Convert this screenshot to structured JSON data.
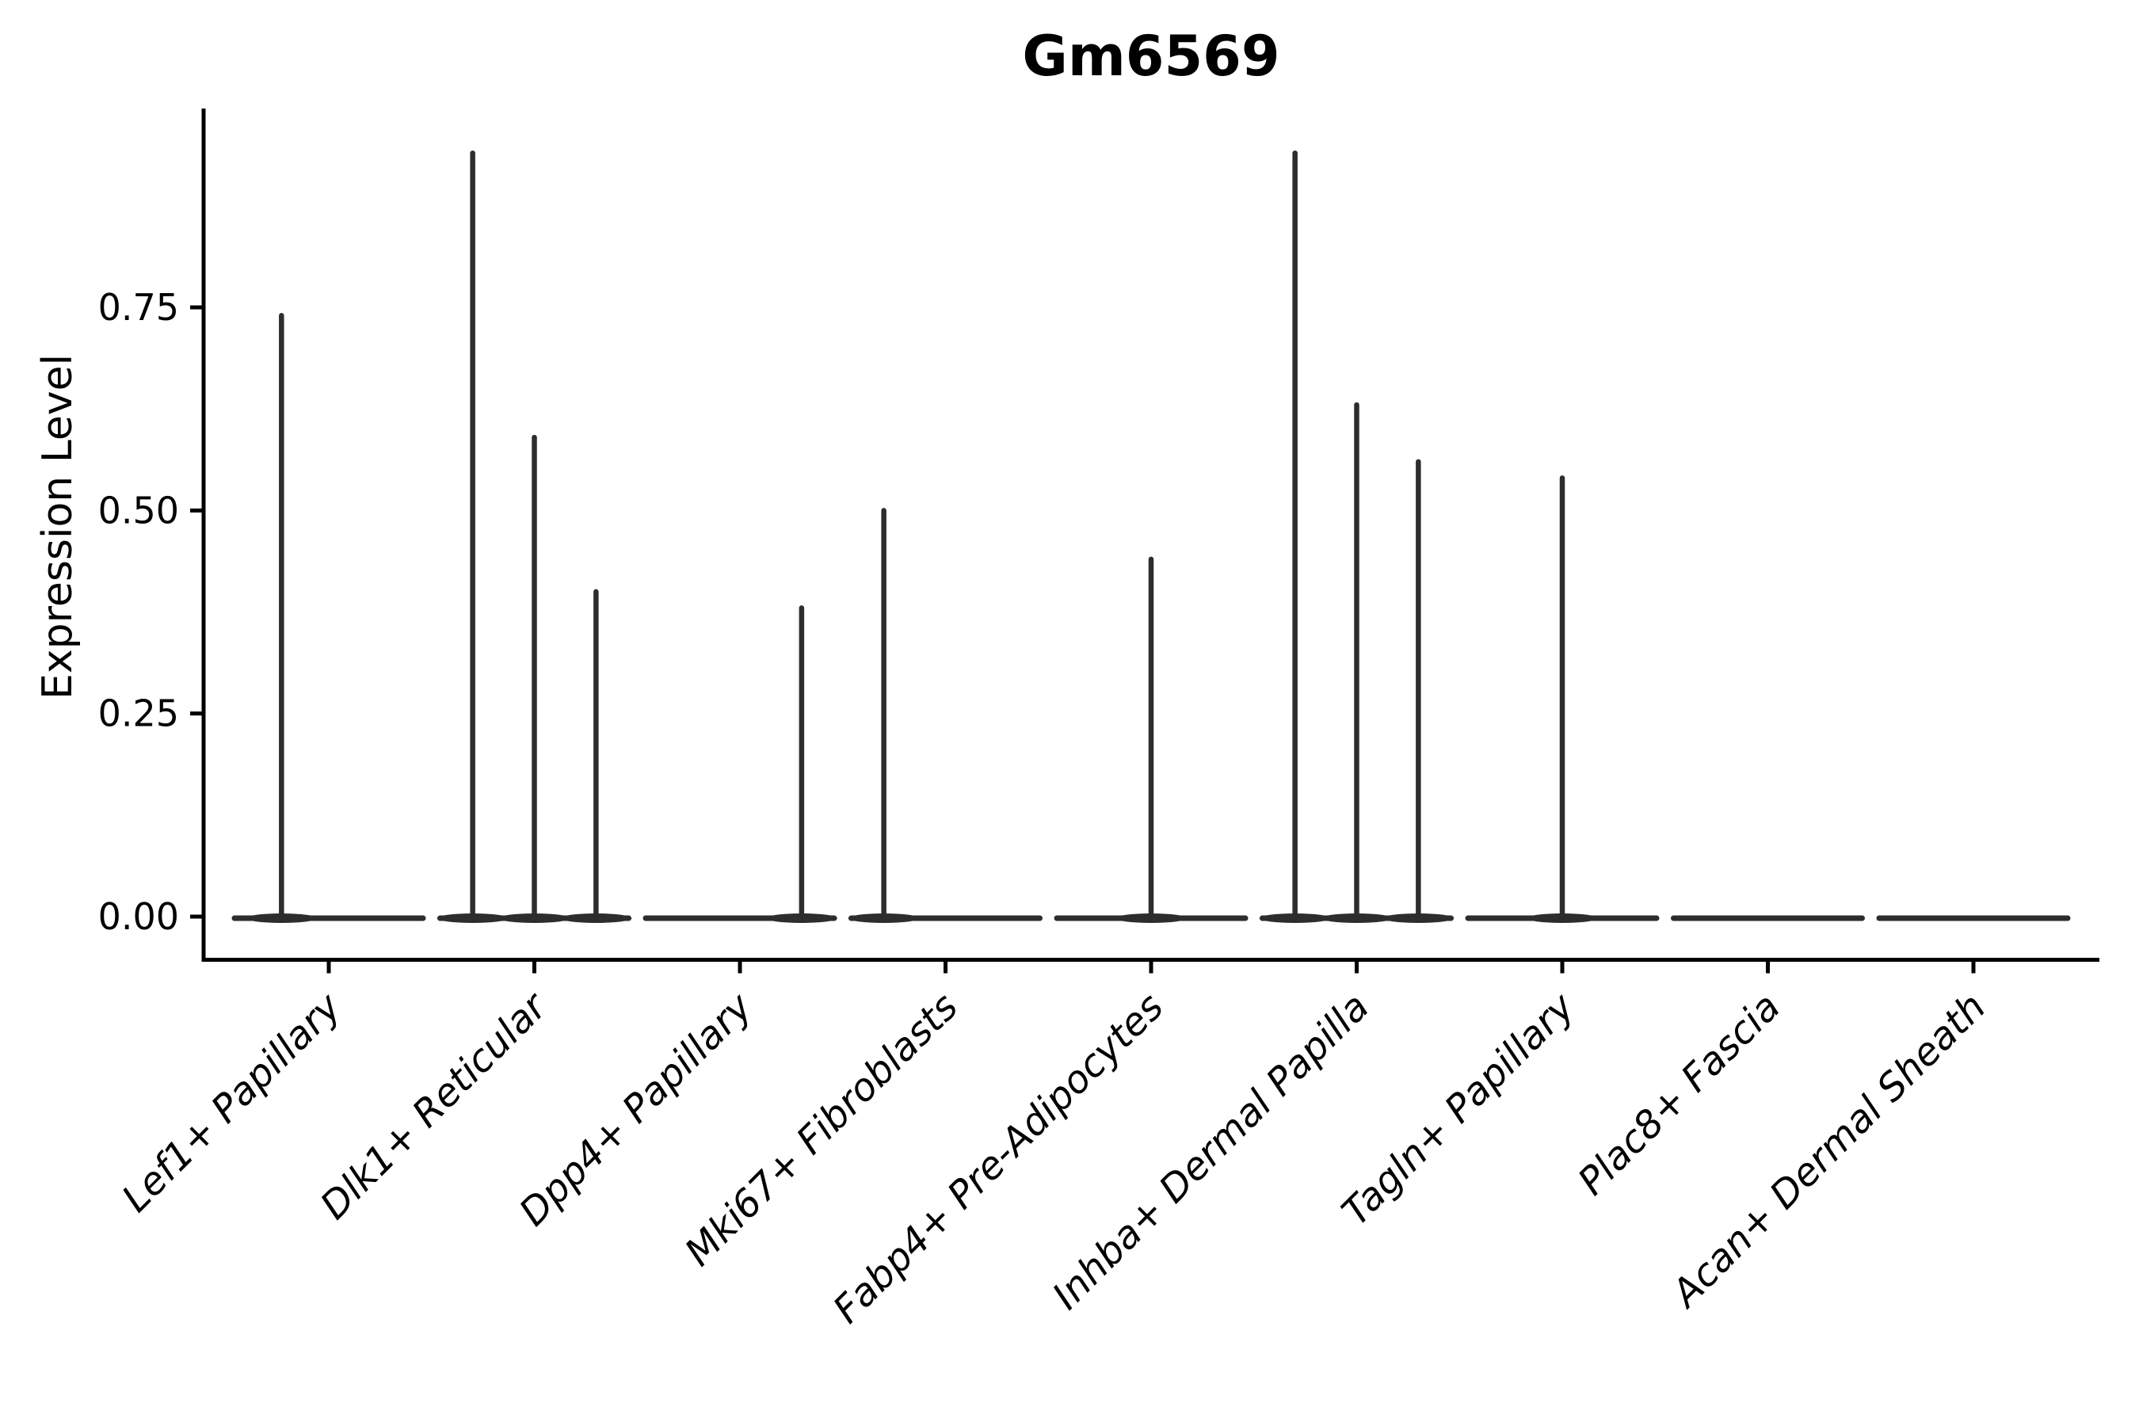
{
  "title": "Gm6569",
  "colors": {
    "violin": "#2d2d2d",
    "axis": "#000000",
    "text": "#000000",
    "background": "#ffffff"
  },
  "chart_data": {
    "type": "violin",
    "title": "Gm6569",
    "xlabel": "",
    "ylabel": "Expression Level",
    "ylim": [
      0,
      0.99
    ],
    "yticks": [
      "0.00",
      "0.25",
      "0.50",
      "0.75"
    ],
    "ytick_values": [
      0,
      0.25,
      0.5,
      0.75
    ],
    "grid": false,
    "legend": "none",
    "x_tick_angle_deg": 45,
    "categories": [
      "Lef1+ Papillary",
      "Dlk1+ Reticular",
      "Dpp4+ Papillary",
      "Mki67+ Fibroblasts",
      "Fabp4+ Pre-Adipocytes",
      "Inhba+ Dermal Papilla",
      "Tagln+ Papillary",
      "Plac8+ Fascia",
      "Acan+ Dermal Sheath"
    ],
    "series": [
      {
        "category": "Lef1+ Papillary",
        "spikes": [
          {
            "offset_frac": -0.23,
            "max_value": 0.74
          }
        ]
      },
      {
        "category": "Dlk1+ Reticular",
        "spikes": [
          {
            "offset_frac": -0.3,
            "max_value": 0.94
          },
          {
            "offset_frac": 0.0,
            "max_value": 0.59
          },
          {
            "offset_frac": 0.3,
            "max_value": 0.4
          }
        ]
      },
      {
        "category": "Dpp4+ Papillary",
        "spikes": [
          {
            "offset_frac": 0.3,
            "max_value": 0.38
          }
        ]
      },
      {
        "category": "Mki67+ Fibroblasts",
        "spikes": [
          {
            "offset_frac": -0.3,
            "max_value": 0.5
          }
        ]
      },
      {
        "category": "Fabp4+ Pre-Adipocytes",
        "spikes": [
          {
            "offset_frac": 0.0,
            "max_value": 0.44
          }
        ]
      },
      {
        "category": "Inhba+ Dermal Papilla",
        "spikes": [
          {
            "offset_frac": -0.3,
            "max_value": 0.94
          },
          {
            "offset_frac": 0.0,
            "max_value": 0.63
          },
          {
            "offset_frac": 0.3,
            "max_value": 0.56
          }
        ]
      },
      {
        "category": "Tagln+ Papillary",
        "spikes": [
          {
            "offset_frac": 0.0,
            "max_value": 0.54
          }
        ]
      },
      {
        "category": "Plac8+ Fascia",
        "spikes": []
      },
      {
        "category": "Acan+ Dermal Sheath",
        "spikes": []
      }
    ]
  }
}
